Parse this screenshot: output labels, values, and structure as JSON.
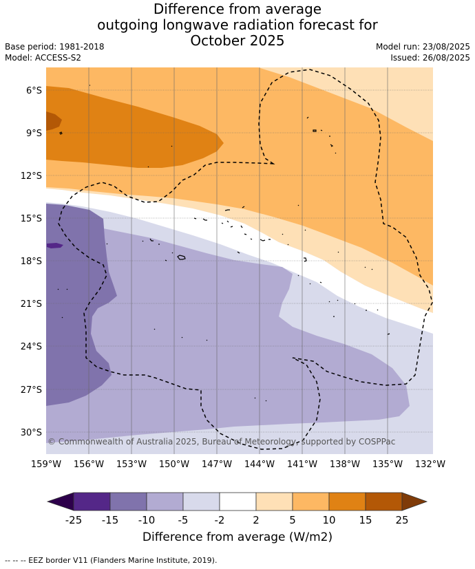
{
  "header": {
    "title_lines": [
      "Difference from average",
      "outgoing longwave radiation forecast for",
      "October 2025"
    ],
    "base_period": "Base period: 1981-2018",
    "model": "Model: ACCESS-S2",
    "model_run": "Model run: 23/08/2025",
    "issued": "Issued: 26/08/2025"
  },
  "map": {
    "lat_labels": [
      "6°S",
      "9°S",
      "12°S",
      "15°S",
      "18°S",
      "21°S",
      "24°S",
      "27°S",
      "30°S"
    ],
    "lon_labels": [
      "159°W",
      "156°W",
      "153°W",
      "150°W",
      "147°W",
      "144°W",
      "141°W",
      "138°W",
      "135°W",
      "132°W"
    ],
    "copyright": "© Commonwealth of Australia 2025, Bureau of Meteorology, supported by COSPPac"
  },
  "colorbar": {
    "ticks": [
      "-25",
      "-15",
      "-10",
      "-5",
      "-2",
      "2",
      "5",
      "10",
      "15",
      "25"
    ],
    "colors": {
      "below_-25": "#2d004b",
      "-25_-15": "#542788",
      "-15_-10": "#8073ac",
      "-10_-5": "#b2abd2",
      "-5_-2": "#d8daeb",
      "-2_2": "#ffffff",
      "2_5": "#fee0b6",
      "5_10": "#fdb863",
      "10_15": "#e08214",
      "15_25": "#b35806",
      "above_25": "#7f3b08"
    },
    "label": "Difference from average (W/m2)"
  },
  "footer": {
    "eez_legend": "--  --  -- EEZ border V11 (Flanders Marine Institute, 2019)."
  }
}
